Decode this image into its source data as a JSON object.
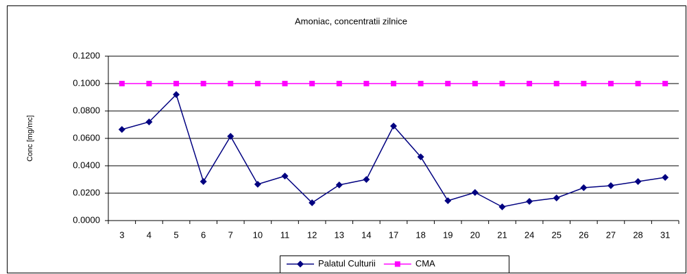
{
  "chart_data": {
    "type": "line",
    "title": "Amoniac, concentratii zilnice",
    "y_label": "Conc [mg/mc]",
    "categories": [
      "3",
      "4",
      "5",
      "6",
      "7",
      "10",
      "11",
      "12",
      "13",
      "14",
      "17",
      "18",
      "19",
      "20",
      "21",
      "24",
      "25",
      "26",
      "27",
      "28",
      "31"
    ],
    "series": [
      {
        "name": "Palatul Culturii",
        "color": "#000080",
        "marker": "diamond",
        "values": [
          0.0665,
          0.072,
          0.092,
          0.0285,
          0.0615,
          0.0265,
          0.0325,
          0.013,
          0.026,
          0.03,
          0.069,
          0.0465,
          0.0145,
          0.0205,
          0.01,
          0.014,
          0.0165,
          0.024,
          0.0255,
          0.0285,
          0.0315
        ]
      },
      {
        "name": "CMA",
        "color": "#ff00ff",
        "marker": "square",
        "values": [
          0.1,
          0.1,
          0.1,
          0.1,
          0.1,
          0.1,
          0.1,
          0.1,
          0.1,
          0.1,
          0.1,
          0.1,
          0.1,
          0.1,
          0.1,
          0.1,
          0.1,
          0.1,
          0.1,
          0.1,
          0.1
        ]
      }
    ],
    "ylim": [
      0,
      0.12
    ],
    "yticks": [
      {
        "value": 0,
        "label": "0.0000"
      },
      {
        "value": 0.02,
        "label": "0.0200"
      },
      {
        "value": 0.04,
        "label": "0.0400"
      },
      {
        "value": 0.06,
        "label": "0.0600"
      },
      {
        "value": 0.08,
        "label": "0.0800"
      },
      {
        "value": 0.1,
        "label": "0.1000"
      },
      {
        "value": 0.12,
        "label": "0.1200"
      }
    ],
    "grid": true,
    "legend": "bottom"
  }
}
